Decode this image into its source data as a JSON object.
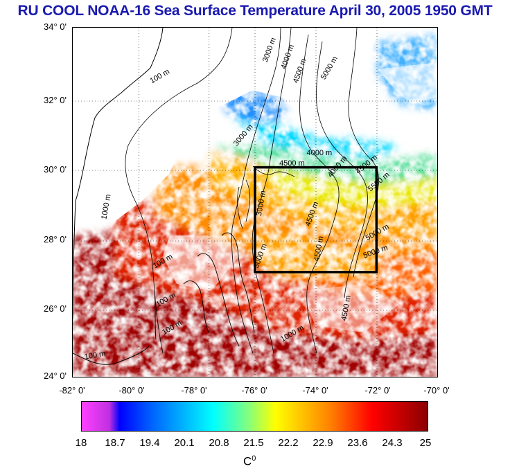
{
  "title": "RU COOL  NOAA-16 Sea Surface Temperature April 30, 2005 1950 GMT",
  "y_ticks": [
    "34° 0'",
    "32° 0'",
    "30° 0'",
    "28° 0'",
    "26° 0'",
    "24° 0'"
  ],
  "x_ticks": [
    "-82° 0'",
    "-80° 0'",
    "-78° 0'",
    "-76° 0'",
    "-74° 0'",
    "-72° 0'",
    "-70° 0'"
  ],
  "contour_labels": [
    {
      "text": "3000 m",
      "lon": -75.6,
      "lat": 33.0,
      "angle": -70
    },
    {
      "text": "4000 m",
      "lon": -75.0,
      "lat": 32.8,
      "angle": -70
    },
    {
      "text": "4500 m",
      "lon": -74.6,
      "lat": 32.4,
      "angle": -70
    },
    {
      "text": "5000 m",
      "lon": -73.7,
      "lat": 32.5,
      "angle": -60
    },
    {
      "text": "100 m",
      "lon": -79.4,
      "lat": 32.4,
      "angle": -30
    },
    {
      "text": "3000 m",
      "lon": -76.6,
      "lat": 30.6,
      "angle": -50
    },
    {
      "text": "4000 m",
      "lon": -74.3,
      "lat": 30.35,
      "angle": 0
    },
    {
      "text": "4500 m",
      "lon": -75.2,
      "lat": 30.05,
      "angle": 0
    },
    {
      "text": "4000 m",
      "lon": -73.5,
      "lat": 29.7,
      "angle": -50
    },
    {
      "text": "4500 m",
      "lon": -72.6,
      "lat": 29.8,
      "angle": -40
    },
    {
      "text": "5500 m",
      "lon": -72.2,
      "lat": 29.3,
      "angle": -40
    },
    {
      "text": "3000 m",
      "lon": -75.8,
      "lat": 28.6,
      "angle": -80
    },
    {
      "text": "4500 m",
      "lon": -74.2,
      "lat": 28.3,
      "angle": -70
    },
    {
      "text": "5000 m",
      "lon": -72.3,
      "lat": 27.9,
      "angle": -30
    },
    {
      "text": "5000 m",
      "lon": -72.4,
      "lat": 27.4,
      "angle": -20
    },
    {
      "text": "4500 m",
      "lon": -73.9,
      "lat": 27.3,
      "angle": -80
    },
    {
      "text": "3000 m",
      "lon": -75.9,
      "lat": 27.1,
      "angle": -70
    },
    {
      "text": "1000 m",
      "lon": -80.9,
      "lat": 28.5,
      "angle": -80
    },
    {
      "text": "100 m",
      "lon": -79.3,
      "lat": 27.1,
      "angle": -30
    },
    {
      "text": "100 m",
      "lon": -79.2,
      "lat": 26.0,
      "angle": -30
    },
    {
      "text": "100 m",
      "lon": -79.0,
      "lat": 25.2,
      "angle": -30
    },
    {
      "text": "100 m",
      "lon": -81.6,
      "lat": 24.5,
      "angle": -10
    },
    {
      "text": "4500 m",
      "lon": -73.0,
      "lat": 25.6,
      "angle": -80
    },
    {
      "text": "1000 m",
      "lon": -75.1,
      "lat": 25.0,
      "angle": -30
    }
  ],
  "study_box": {
    "lon_min": -76.0,
    "lon_max": -72.0,
    "lat_min": 27.0,
    "lat_max": 30.0
  },
  "colorbar": {
    "ticks": [
      "18",
      "18.7",
      "19.4",
      "20.1",
      "20.8",
      "21.5",
      "22.2",
      "22.9",
      "23.6",
      "24.3",
      "25"
    ],
    "unit": "C",
    "unit_sup": "0",
    "colors": [
      "#ff40ff",
      "#0000ff",
      "#00ffff",
      "#ffff00",
      "#ff8000",
      "#ff0000",
      "#8b0000"
    ]
  },
  "colors": {
    "title": "#1a1ab0",
    "land": "#ffffff",
    "clouds": "#ffffff",
    "box": "#000000"
  }
}
